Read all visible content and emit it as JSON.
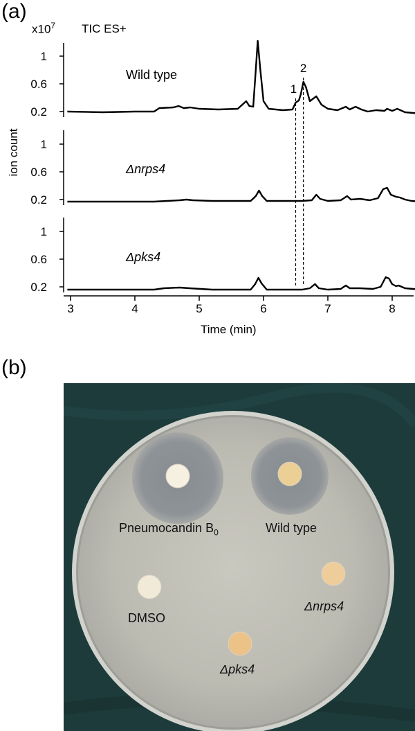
{
  "panel_a": {
    "label": "(a)",
    "scale_base": "x10",
    "scale_exp": "7",
    "tic_label": "TIC ES+",
    "ylabel": "ion count",
    "xlabel": "Time (min)",
    "x_ticks": [
      "3",
      "4",
      "5",
      "6",
      "7",
      "8"
    ],
    "y_ticks": [
      "1",
      "0.6",
      "0.2"
    ],
    "traces": [
      {
        "name": "Wild type",
        "italic": false
      },
      {
        "name": "Δnrps4",
        "italic": true
      },
      {
        "name": "Δpks4",
        "italic": true
      }
    ],
    "peak_labels": [
      "1",
      "2"
    ],
    "peak_times": [
      6.5,
      6.62
    ]
  },
  "chart_data": {
    "type": "line",
    "title": "TIC ES+",
    "xlabel": "Time (min)",
    "ylabel": "ion count",
    "xlim": [
      2.95,
      8.45
    ],
    "ylim": [
      0,
      1.25
    ],
    "y_unit": "x10^7",
    "series": [
      {
        "name": "Wild type",
        "points": [
          [
            2.95,
            0.2
          ],
          [
            3.5,
            0.19
          ],
          [
            4.0,
            0.2
          ],
          [
            4.3,
            0.2
          ],
          [
            4.38,
            0.25
          ],
          [
            4.6,
            0.26
          ],
          [
            4.68,
            0.28
          ],
          [
            4.76,
            0.25
          ],
          [
            4.86,
            0.26
          ],
          [
            5.0,
            0.24
          ],
          [
            5.3,
            0.23
          ],
          [
            5.6,
            0.24
          ],
          [
            5.73,
            0.35
          ],
          [
            5.78,
            0.28
          ],
          [
            5.84,
            0.27
          ],
          [
            5.88,
            0.8
          ],
          [
            5.91,
            1.22
          ],
          [
            5.95,
            0.8
          ],
          [
            6.0,
            0.35
          ],
          [
            6.08,
            0.24
          ],
          [
            6.3,
            0.22
          ],
          [
            6.45,
            0.23
          ],
          [
            6.5,
            0.33
          ],
          [
            6.55,
            0.36
          ],
          [
            6.58,
            0.45
          ],
          [
            6.62,
            0.63
          ],
          [
            6.66,
            0.55
          ],
          [
            6.72,
            0.35
          ],
          [
            6.82,
            0.42
          ],
          [
            6.9,
            0.3
          ],
          [
            7.0,
            0.24
          ],
          [
            7.15,
            0.22
          ],
          [
            7.28,
            0.27
          ],
          [
            7.34,
            0.23
          ],
          [
            7.43,
            0.27
          ],
          [
            7.52,
            0.23
          ],
          [
            7.62,
            0.2
          ],
          [
            7.75,
            0.22
          ],
          [
            7.88,
            0.21
          ],
          [
            7.92,
            0.24
          ],
          [
            8.0,
            0.21
          ],
          [
            8.08,
            0.24
          ],
          [
            8.2,
            0.19
          ],
          [
            8.45,
            0.17
          ]
        ]
      },
      {
        "name": "Δnrps4",
        "points": [
          [
            2.95,
            0.17
          ],
          [
            3.5,
            0.17
          ],
          [
            4.0,
            0.17
          ],
          [
            4.3,
            0.17
          ],
          [
            4.5,
            0.18
          ],
          [
            4.7,
            0.19
          ],
          [
            4.8,
            0.2
          ],
          [
            4.9,
            0.19
          ],
          [
            5.2,
            0.18
          ],
          [
            5.5,
            0.18
          ],
          [
            5.8,
            0.18
          ],
          [
            5.88,
            0.25
          ],
          [
            5.93,
            0.33
          ],
          [
            5.98,
            0.25
          ],
          [
            6.05,
            0.18
          ],
          [
            6.3,
            0.18
          ],
          [
            6.6,
            0.18
          ],
          [
            6.75,
            0.19
          ],
          [
            6.82,
            0.27
          ],
          [
            6.88,
            0.21
          ],
          [
            7.0,
            0.18
          ],
          [
            7.2,
            0.19
          ],
          [
            7.3,
            0.25
          ],
          [
            7.36,
            0.2
          ],
          [
            7.5,
            0.21
          ],
          [
            7.65,
            0.19
          ],
          [
            7.78,
            0.22
          ],
          [
            7.86,
            0.35
          ],
          [
            7.92,
            0.37
          ],
          [
            7.98,
            0.27
          ],
          [
            8.06,
            0.24
          ],
          [
            8.12,
            0.23
          ],
          [
            8.2,
            0.2
          ],
          [
            8.3,
            0.18
          ],
          [
            8.45,
            0.17
          ]
        ]
      },
      {
        "name": "Δpks4",
        "points": [
          [
            2.95,
            0.16
          ],
          [
            3.5,
            0.16
          ],
          [
            4.0,
            0.16
          ],
          [
            4.3,
            0.16
          ],
          [
            4.45,
            0.18
          ],
          [
            4.7,
            0.19
          ],
          [
            4.85,
            0.18
          ],
          [
            5.2,
            0.16
          ],
          [
            5.5,
            0.16
          ],
          [
            5.8,
            0.16
          ],
          [
            5.87,
            0.24
          ],
          [
            5.92,
            0.33
          ],
          [
            5.97,
            0.25
          ],
          [
            6.05,
            0.16
          ],
          [
            6.3,
            0.16
          ],
          [
            6.6,
            0.16
          ],
          [
            6.72,
            0.18
          ],
          [
            6.8,
            0.24
          ],
          [
            6.86,
            0.18
          ],
          [
            7.0,
            0.16
          ],
          [
            7.2,
            0.17
          ],
          [
            7.28,
            0.22
          ],
          [
            7.34,
            0.18
          ],
          [
            7.5,
            0.18
          ],
          [
            7.7,
            0.17
          ],
          [
            7.82,
            0.2
          ],
          [
            7.9,
            0.34
          ],
          [
            7.95,
            0.32
          ],
          [
            8.0,
            0.24
          ],
          [
            8.06,
            0.21
          ],
          [
            8.1,
            0.22
          ],
          [
            8.2,
            0.18
          ],
          [
            8.45,
            0.16
          ]
        ]
      }
    ]
  },
  "panel_b": {
    "label": "(b)",
    "discs": [
      {
        "name": "Pneumocandin B",
        "sub": "0",
        "italic": false,
        "color": "#f5f0df"
      },
      {
        "name": "Wild type",
        "sub": "",
        "italic": false,
        "color": "#eccf95"
      },
      {
        "name": "DMSO",
        "sub": "",
        "italic": false,
        "color": "#f2ead8"
      },
      {
        "name": "Δnrps4",
        "sub": "",
        "italic": true,
        "color": "#efcd9a"
      },
      {
        "name": "Δpks4",
        "sub": "",
        "italic": true,
        "color": "#edc289"
      }
    ],
    "colors": {
      "cloth": "#1d3b3b",
      "agar": "#bebdb4",
      "halo": "#8f9498"
    }
  }
}
